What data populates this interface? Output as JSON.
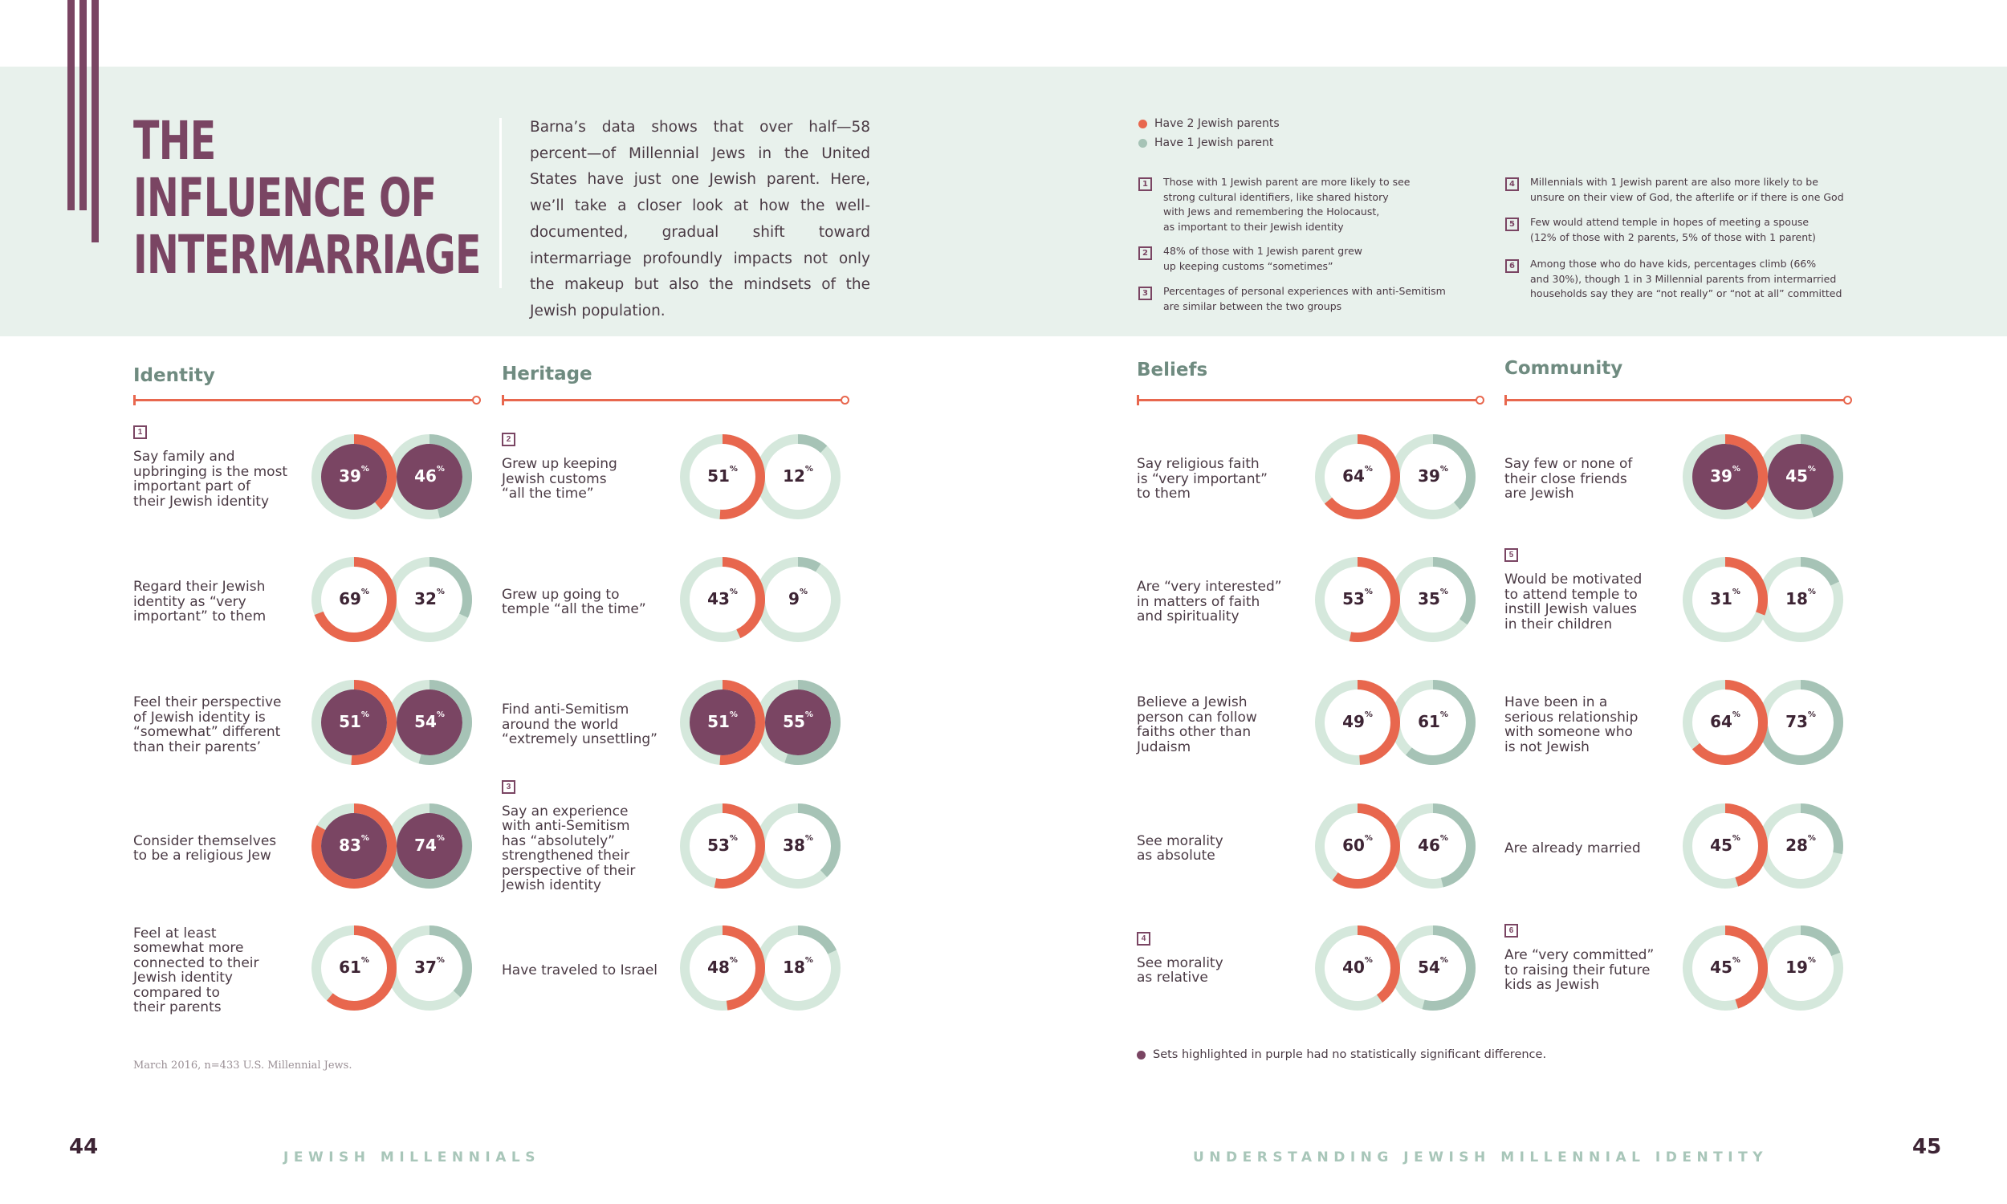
{
  "colors": {
    "two_parents": "#e8674e",
    "one_parent": "#a6c3b6",
    "purple": "#7a4563",
    "track": "#d5e8dc",
    "band": "#e8f1ec"
  },
  "title": {
    "line1": "THE",
    "line2": "INFLUENCE OF",
    "line3": "INTERMARRIAGE"
  },
  "intro": "Barna’s data shows that over half—58 percent—of Millennial Jews in the United States have just one Jewish parent. Here, we’ll take a closer look at how the well-documented, gradual shift toward intermarriage profoundly impacts not only the makeup but also the mindsets of the Jewish population.",
  "legend": {
    "two": "Have 2 Jewish parents",
    "one": "Have 1 Jewish parent"
  },
  "notes": [
    {
      "num": "1",
      "lines": [
        "Those with 1 Jewish parent are more likely to see",
        "strong cultural identifiers, like shared history",
        "with Jews and remembering the Holocaust,",
        "as important to their Jewish identity"
      ]
    },
    {
      "num": "2",
      "lines": [
        "48% of those with 1 Jewish parent grew",
        "up keeping customs “sometimes”"
      ]
    },
    {
      "num": "3",
      "lines": [
        "Percentages of personal experiences with anti-Semitism",
        "are similar between the two groups"
      ]
    },
    {
      "num": "4",
      "lines": [
        "Millennials with 1 Jewish parent are also more likely to be",
        "unsure on their view of God, the afterlife or if there is one God"
      ]
    },
    {
      "num": "5",
      "lines": [
        "Few would attend temple in hopes of meeting a spouse",
        "(12% of those with 2 parents, 5% of those with 1 parent)"
      ]
    },
    {
      "num": "6",
      "lines": [
        "Among those who do have kids, percentages climb (66%",
        "and 30%), though 1 in 3 Millennial parents from intermarried",
        "households say they are “not really” or “not at all” committed"
      ]
    }
  ],
  "percent_suffix": "%",
  "columns": [
    {
      "heading": "Identity",
      "rows": [
        {
          "num": "1",
          "label": [
            "Say family and",
            "upbringing is the most",
            "important part of",
            "their Jewish identity"
          ],
          "two": 39,
          "one": 46,
          "purple": true
        },
        {
          "label": [
            "Regard their Jewish",
            "identity as “very",
            "important” to them"
          ],
          "two": 69,
          "one": 32,
          "purple": false
        },
        {
          "label": [
            "Feel their perspective",
            "of Jewish identity is",
            "“somewhat” different",
            "than their parents’"
          ],
          "two": 51,
          "one": 54,
          "purple": true
        },
        {
          "label": [
            "Consider themselves",
            "to be a religious Jew"
          ],
          "two": 83,
          "one": 74,
          "purple": true
        },
        {
          "label": [
            "Feel at least",
            "somewhat more",
            "connected to their",
            "Jewish identity",
            "compared to",
            "their parents"
          ],
          "two": 61,
          "one": 37,
          "purple": false
        }
      ]
    },
    {
      "heading": "Heritage",
      "rows": [
        {
          "num": "2",
          "label": [
            "Grew up keeping",
            "Jewish customs",
            "“all the time”"
          ],
          "two": 51,
          "one": 12,
          "purple": false
        },
        {
          "label": [
            "Grew up going to",
            "temple “all the time”"
          ],
          "two": 43,
          "one": 9,
          "purple": false
        },
        {
          "label": [
            "Find anti-Semitism",
            "around the world",
            "“extremely unsettling”"
          ],
          "two": 51,
          "one": 55,
          "purple": true
        },
        {
          "num": "3",
          "label": [
            "Say an experience",
            "with anti-Semitism",
            "has “absolutely”",
            "strengthened their",
            "perspective of their",
            "Jewish identity"
          ],
          "two": 53,
          "one": 38,
          "purple": false
        },
        {
          "label": [
            "Have traveled to Israel"
          ],
          "two": 48,
          "one": 18,
          "purple": false
        }
      ]
    },
    {
      "heading": "Beliefs",
      "rows": [
        {
          "label": [
            "Say religious faith",
            "is “very important”",
            "to them"
          ],
          "two": 64,
          "one": 39,
          "purple": false
        },
        {
          "label": [
            "Are “very interested”",
            "in matters of faith",
            "and spirituality"
          ],
          "two": 53,
          "one": 35,
          "purple": false
        },
        {
          "label": [
            "Believe a Jewish",
            "person can follow",
            "faiths other than",
            "Judaism"
          ],
          "two": 49,
          "one": 61,
          "purple": false
        },
        {
          "label": [
            "See morality",
            "as absolute"
          ],
          "two": 60,
          "one": 46,
          "purple": false
        },
        {
          "num": "4",
          "label": [
            "See morality",
            "as relative"
          ],
          "two": 40,
          "one": 54,
          "purple": false
        }
      ]
    },
    {
      "heading": "Community",
      "rows": [
        {
          "label": [
            "Say few or none of",
            "their close friends",
            "are Jewish"
          ],
          "two": 39,
          "one": 45,
          "purple": true
        },
        {
          "num": "5",
          "label": [
            "Would be motivated",
            "to attend temple to",
            "instill Jewish values",
            "in their children"
          ],
          "two": 31,
          "one": 18,
          "purple": false
        },
        {
          "label": [
            "Have been in a",
            "serious relationship",
            "with someone who",
            "is not Jewish"
          ],
          "two": 64,
          "one": 73,
          "purple": false
        },
        {
          "label": [
            "Are already married"
          ],
          "two": 45,
          "one": 28,
          "purple": false
        },
        {
          "num": "6",
          "label": [
            "Are “very committed”",
            "to raising their future",
            "kids as Jewish"
          ],
          "two": 45,
          "one": 19,
          "purple": false
        }
      ]
    }
  ],
  "footnote": "March 2016, n=433 U.S. Millennial Jews.",
  "significance_note": "Sets highlighted in purple had no statistically significant difference.",
  "page_left": "44",
  "page_right": "45",
  "running_left": "JEWISH MILLENNIALS",
  "running_right": "UNDERSTANDING JEWISH MILLENNIAL IDENTITY"
}
